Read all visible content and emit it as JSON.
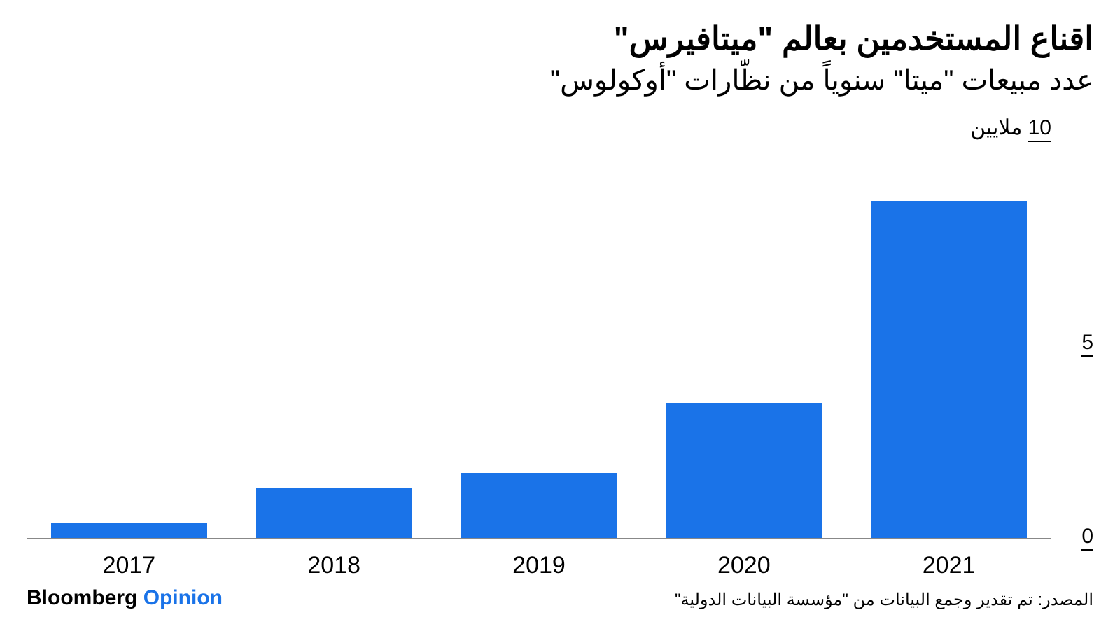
{
  "header": {
    "title": "اقناع المستخدمين بعالم \"ميتافيرس\"",
    "subtitle": "عدد مبيعات \"ميتا\" سنوياً من نظّارات \"أوكولوس\""
  },
  "chart": {
    "type": "bar",
    "y_axis_unit_label": "ملايين",
    "y_axis_top_value": "10",
    "categories": [
      "2017",
      "2018",
      "2019",
      "2020",
      "2021"
    ],
    "values": [
      0.4,
      1.3,
      1.7,
      3.5,
      8.7
    ],
    "ylim": [
      0,
      10
    ],
    "yticks": [
      {
        "value": 10,
        "label": "10",
        "position_from_top_pct": 0
      },
      {
        "value": 5,
        "label": "5",
        "position_from_top_pct": 50
      },
      {
        "value": 0,
        "label": "0",
        "position_from_top_pct": 100
      }
    ],
    "bar_color": "#1a73e8",
    "background_color": "#ffffff",
    "baseline_color": "#888888",
    "bar_width_ratio": 0.76,
    "text_color": "#000000",
    "tick_fontsize": 30,
    "xlabel_fontsize": 34
  },
  "footer": {
    "brand_part1": "Bloomberg",
    "brand_part2": "Opinion",
    "brand_color_1": "#000000",
    "brand_color_2": "#1a73e8",
    "source": "المصدر: تم تقدير وجمع البيانات من \"مؤسسة البيانات الدولية\""
  }
}
